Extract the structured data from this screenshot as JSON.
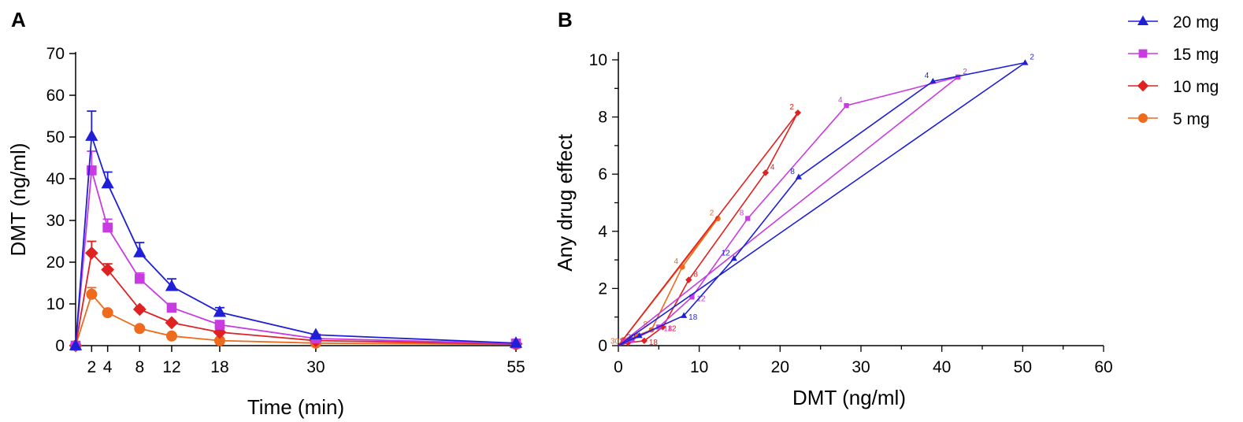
{
  "colors": {
    "20 mg": "#1f1fd6",
    "15 mg": "#c83be0",
    "10 mg": "#e02121",
    "5 mg": "#ee6a1c"
  },
  "markers": {
    "20 mg": "triangle",
    "15 mg": "square",
    "10 mg": "diamond",
    "5 mg": "circle"
  },
  "legend": {
    "placement": "top-right",
    "entries": [
      "20 mg",
      "15 mg",
      "10 mg",
      "5 mg"
    ]
  },
  "chart_data": [
    {
      "panel": "A",
      "type": "line",
      "xlabel": "Time (min)",
      "ylabel": "DMT (ng/ml)",
      "xlim": [
        0,
        55
      ],
      "ylim": [
        0,
        70
      ],
      "xticks": [
        2,
        4,
        8,
        12,
        18,
        30,
        55
      ],
      "yticks": [
        0,
        10,
        20,
        30,
        40,
        50,
        60,
        70
      ],
      "grid": false,
      "x": [
        0,
        2,
        4,
        8,
        12,
        18,
        30,
        55
      ],
      "series": [
        {
          "name": "20 mg",
          "values": [
            0,
            50.2,
            38.8,
            22.3,
            14.2,
            8.0,
            2.6,
            0.6
          ],
          "errors": [
            0,
            6.0,
            2.8,
            2.4,
            1.8,
            1.1,
            0,
            0
          ]
        },
        {
          "name": "15 mg",
          "values": [
            0,
            42.0,
            28.3,
            16.0,
            9.1,
            5.0,
            1.7,
            0.5
          ],
          "errors": [
            0,
            4.6,
            2.0,
            1.4,
            0.8,
            0.5,
            0,
            0
          ]
        },
        {
          "name": "10 mg",
          "values": [
            0,
            22.2,
            18.2,
            8.7,
            5.5,
            3.2,
            1.2,
            0.4
          ],
          "errors": [
            0,
            2.8,
            1.4,
            0.5,
            0.4,
            0.3,
            0,
            0
          ]
        },
        {
          "name": "5 mg",
          "values": [
            0,
            12.3,
            7.9,
            4.1,
            2.3,
            1.2,
            0.6,
            0.3
          ],
          "errors": [
            0,
            1.6,
            0.6,
            0.3,
            0.2,
            0.2,
            0,
            0
          ]
        }
      ]
    },
    {
      "panel": "B",
      "type": "line",
      "xlabel": "DMT (ng/ml)",
      "ylabel": "Any drug effect",
      "xlim": [
        0,
        60
      ],
      "ylim": [
        0,
        10
      ],
      "xticks": [
        0,
        10,
        20,
        30,
        40,
        50,
        60
      ],
      "yticks": [
        0,
        2,
        4,
        6,
        8,
        10
      ],
      "grid": false,
      "series": [
        {
          "name": "20 mg",
          "x": [
            0,
            50.3,
            38.9,
            22.3,
            14.3,
            8.1,
            2.6,
            0
          ],
          "y": [
            0,
            9.9,
            9.25,
            5.9,
            3.05,
            1.05,
            0.35,
            0
          ],
          "labels": [
            "",
            "2",
            "4",
            "8",
            "12",
            "18",
            "30",
            ""
          ]
        },
        {
          "name": "15 mg",
          "x": [
            0,
            42.0,
            28.2,
            16.0,
            9.1,
            5.0,
            1.7,
            0
          ],
          "y": [
            0,
            9.4,
            8.4,
            4.45,
            1.7,
            0.65,
            0.2,
            0
          ],
          "labels": [
            "",
            "2",
            "4",
            "8",
            "12",
            "18",
            "30",
            ""
          ]
        },
        {
          "name": "10 mg",
          "x": [
            0,
            22.2,
            18.2,
            8.7,
            5.5,
            3.2,
            1.2,
            0
          ],
          "y": [
            0,
            8.15,
            6.05,
            2.3,
            0.65,
            0.17,
            0.1,
            0
          ],
          "labels": [
            "",
            "2",
            "4",
            "8",
            "12",
            "18",
            "",
            ""
          ]
        },
        {
          "name": "5 mg",
          "x": [
            0,
            12.3,
            7.9,
            4.1,
            2.3,
            1.2,
            0.6,
            0
          ],
          "y": [
            0,
            4.45,
            2.75,
            0.55,
            0.35,
            0.2,
            0.2,
            0
          ],
          "labels": [
            "",
            "2",
            "4",
            "8",
            "",
            "",
            "30",
            ""
          ]
        }
      ]
    }
  ]
}
